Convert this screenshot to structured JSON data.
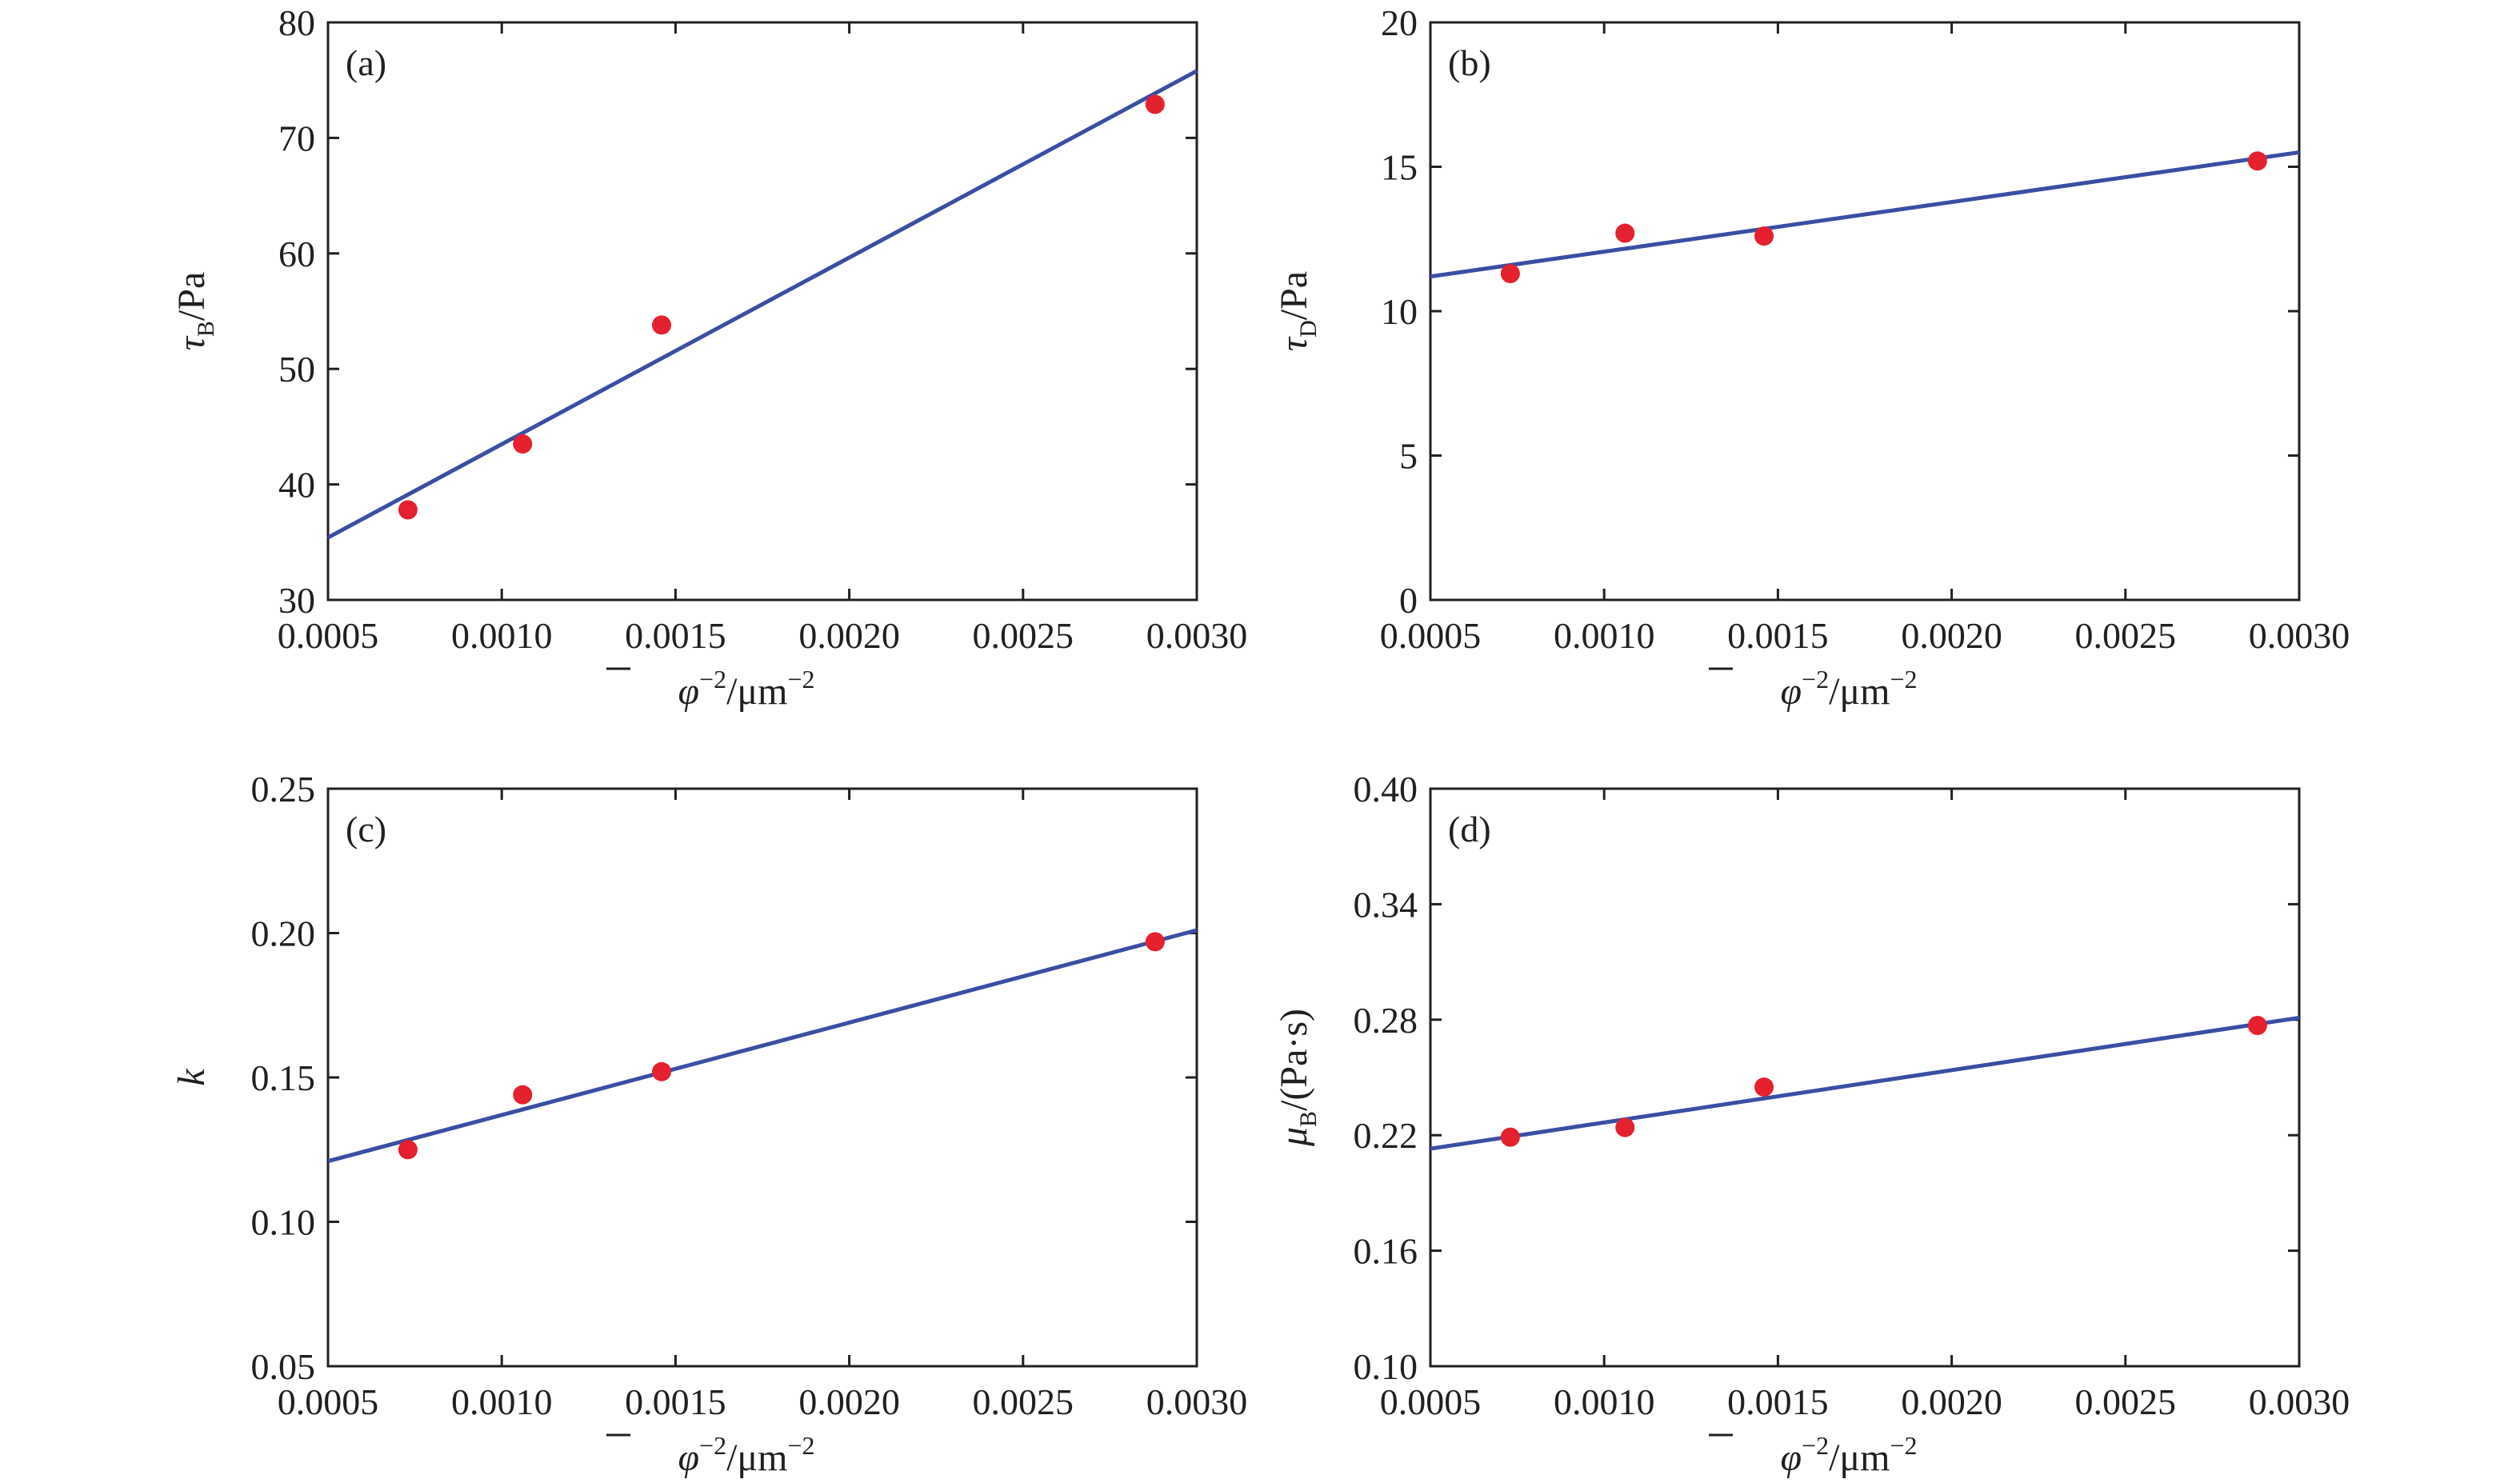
{
  "colors": {
    "axis": "#231f20",
    "fit_line": "#3a4ea3",
    "points": "#e5202f"
  },
  "chart_data": [
    {
      "type": "scatter",
      "panel_label": "(a)",
      "xlabel": "φ̄⁻²/μm⁻²",
      "ylabel": "τB/Pa",
      "ylabel_main": "τ",
      "ylabel_sub": "B",
      "ylabel_unit": "/Pa",
      "xlim": [
        0.0005,
        0.003
      ],
      "ylim": [
        30,
        80
      ],
      "x_ticks": [
        "0.0005",
        "0.0010",
        "0.0015",
        "0.0020",
        "0.0025",
        "0.0030"
      ],
      "y_ticks": [
        "30",
        "40",
        "50",
        "60",
        "70",
        "80"
      ],
      "points": {
        "x": [
          0.00073,
          0.00106,
          0.00146,
          0.00288
        ],
        "y": [
          37.8,
          43.5,
          53.8,
          72.9
        ]
      },
      "fit": {
        "x": [
          0.0005,
          0.003
        ],
        "y": [
          35.4,
          75.8
        ]
      },
      "grid": false
    },
    {
      "type": "scatter",
      "panel_label": "(b)",
      "xlabel": "φ̄⁻²/μm⁻²",
      "ylabel": "τD/Pa",
      "ylabel_main": "τ",
      "ylabel_sub": "D",
      "ylabel_unit": "/Pa",
      "xlim": [
        0.0005,
        0.003
      ],
      "ylim": [
        0,
        20
      ],
      "x_ticks": [
        "0.0005",
        "0.0010",
        "0.0015",
        "0.0020",
        "0.0025",
        "0.0030"
      ],
      "y_ticks": [
        "0",
        "5",
        "10",
        "15",
        "20"
      ],
      "points": {
        "x": [
          0.00073,
          0.00106,
          0.00146,
          0.00288
        ],
        "y": [
          11.3,
          12.7,
          12.6,
          15.2
        ]
      },
      "fit": {
        "x": [
          0.0005,
          0.003
        ],
        "y": [
          11.2,
          15.5
        ]
      },
      "grid": false
    },
    {
      "type": "scatter",
      "panel_label": "(c)",
      "xlabel": "φ̄⁻²/μm⁻²",
      "ylabel": "k",
      "ylabel_main": "k",
      "ylabel_sub": "",
      "ylabel_unit": "",
      "xlim": [
        0.0005,
        0.003
      ],
      "ylim": [
        0.05,
        0.25
      ],
      "x_ticks": [
        "0.0005",
        "0.0010",
        "0.0015",
        "0.0020",
        "0.0025",
        "0.0030"
      ],
      "y_ticks": [
        "0.05",
        "0.10",
        "0.15",
        "0.20",
        "0.25"
      ],
      "points": {
        "x": [
          0.00073,
          0.00106,
          0.00146,
          0.00288
        ],
        "y": [
          0.125,
          0.144,
          0.152,
          0.197
        ]
      },
      "fit": {
        "x": [
          0.0005,
          0.003
        ],
        "y": [
          0.121,
          0.201
        ]
      },
      "grid": false
    },
    {
      "type": "scatter",
      "panel_label": "(d)",
      "xlabel": "φ̄⁻²/μm⁻²",
      "ylabel": "μB/(Pa·s)",
      "ylabel_main": "μ",
      "ylabel_sub": "B",
      "ylabel_unit": "/(Pa·s)",
      "xlim": [
        0.0005,
        0.003
      ],
      "ylim": [
        0.1,
        0.4
      ],
      "x_ticks": [
        "0.0005",
        "0.0010",
        "0.0015",
        "0.0020",
        "0.0025",
        "0.0030"
      ],
      "y_ticks": [
        "0.10",
        "0.16",
        "0.22",
        "0.28",
        "0.34",
        "0.40"
      ],
      "points": {
        "x": [
          0.00073,
          0.00106,
          0.00146,
          0.00288
        ],
        "y": [
          0.219,
          0.224,
          0.245,
          0.277
        ]
      },
      "fit": {
        "x": [
          0.0005,
          0.003
        ],
        "y": [
          0.213,
          0.281
        ]
      },
      "grid": false
    }
  ]
}
